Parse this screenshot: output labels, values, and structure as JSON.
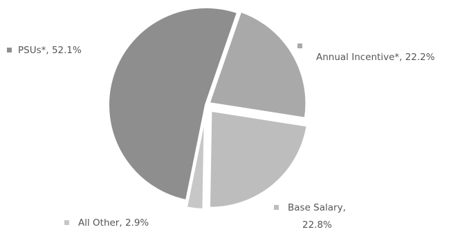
{
  "chart_data": {
    "type": "pie",
    "title": "",
    "slices": [
      {
        "label": "PSUs*, 52.1%",
        "value": 52.1,
        "color": "#8e8e8e"
      },
      {
        "label": "Annual Incentive*, 22.2%",
        "value": 22.2,
        "color": "#a9a9a9"
      },
      {
        "label": "Base Salary, 22.8%",
        "label_lines": [
          "Base Salary,",
          "22.8%"
        ],
        "value": 22.8,
        "color": "#bdbdbd"
      },
      {
        "label": "All Other, 2.9%",
        "value": 2.9,
        "color": "#c7c7c7"
      }
    ],
    "legend": "labels beside slices"
  }
}
